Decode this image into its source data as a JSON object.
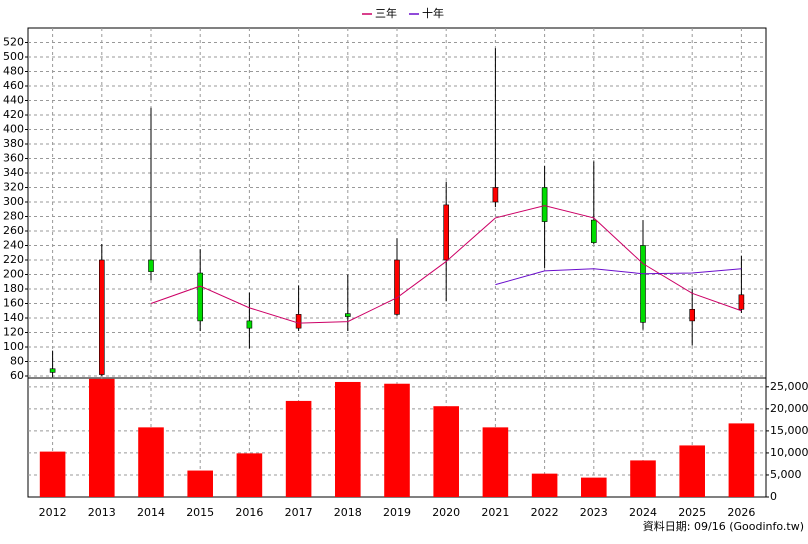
{
  "chart_data": {
    "type": "candlestick",
    "categories": [
      "2012",
      "2013",
      "2014",
      "2015",
      "2016",
      "2017",
      "2018",
      "2019",
      "2020",
      "2021",
      "2022",
      "2023",
      "2024",
      "2025",
      "2026"
    ],
    "open": [
      70,
      62,
      220,
      202,
      136,
      126,
      146,
      145,
      220,
      300,
      320,
      275,
      240,
      136,
      152
    ],
    "high": [
      95,
      242,
      430,
      235,
      175,
      185,
      200,
      250,
      328,
      512,
      350,
      356,
      275,
      180,
      226
    ],
    "low": [
      58,
      60,
      192,
      122,
      98,
      122,
      122,
      143,
      163,
      293,
      209,
      242,
      124,
      102,
      147
    ],
    "close": [
      65,
      220,
      204,
      136,
      126,
      145,
      142,
      220,
      296,
      320,
      273,
      244,
      134,
      152,
      172
    ],
    "up_color": "#ff0000",
    "down_color": "#00dd00",
    "series": [
      {
        "name": "三年",
        "color": "#cc0066",
        "values": [
          null,
          null,
          160,
          184,
          154,
          133,
          135,
          168,
          218,
          278,
          295,
          278,
          215,
          174,
          150
        ]
      },
      {
        "name": "十年",
        "color": "#6a0dcc",
        "values": [
          null,
          null,
          null,
          null,
          null,
          null,
          null,
          null,
          null,
          186,
          205,
          208,
          201,
          202,
          208
        ]
      }
    ],
    "volume": {
      "axis": "y2",
      "color": "#ff0000",
      "values": [
        10300,
        26800,
        15800,
        6000,
        9900,
        21800,
        26100,
        25700,
        20600,
        15800,
        5300,
        4400,
        8300,
        11700,
        16700
      ]
    },
    "ylim": [
      60,
      540
    ],
    "yticks": [
      60,
      80,
      100,
      120,
      140,
      160,
      180,
      200,
      220,
      240,
      260,
      280,
      300,
      320,
      340,
      360,
      380,
      400,
      420,
      440,
      460,
      480,
      500,
      520
    ],
    "y2lim": [
      0,
      27000
    ],
    "y2ticks": [
      0,
      {
        "value": 5000,
        "label": "5,000"
      },
      {
        "value": 10000,
        "label": "10,000"
      },
      {
        "value": 15000,
        "label": "15,000"
      },
      {
        "value": 20000,
        "label": "20,000"
      },
      {
        "value": 25000,
        "label": "25,000"
      }
    ],
    "grid": true,
    "legend": "top"
  },
  "footer": "資料日期: 09/16 (Goodinfo.tw)"
}
